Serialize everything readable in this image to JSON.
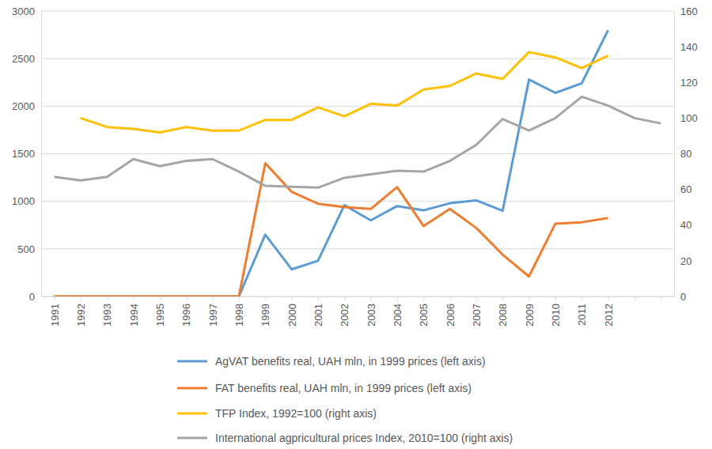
{
  "chart_data": {
    "type": "line",
    "categories": [
      "1991",
      "1992",
      "1993",
      "1994",
      "1995",
      "1996",
      "1997",
      "1998",
      "1999",
      "2000",
      "2001",
      "2002",
      "2003",
      "2004",
      "2005",
      "2006",
      "2007",
      "2008",
      "2009",
      "2010",
      "2011",
      "2012",
      null,
      null
    ],
    "series": [
      {
        "name": "AgVAT benefits real, UAH mln, in 1999 prices (left axis)",
        "color": "#5b9bd5",
        "values": [
          0,
          0,
          0,
          0,
          0,
          0,
          0,
          0,
          650,
          285,
          375,
          960,
          800,
          950,
          905,
          980,
          1010,
          900,
          2280,
          2140,
          2240,
          2800,
          null,
          null
        ]
      },
      {
        "name": "FAT benefits real, UAH mln,  in 1999 prices (left axis)",
        "color": "#ed7d31",
        "values": [
          0,
          0,
          0,
          0,
          0,
          0,
          0,
          0,
          1400,
          1100,
          975,
          940,
          920,
          1150,
          740,
          920,
          720,
          440,
          210,
          765,
          780,
          825,
          null,
          null
        ]
      },
      {
        "name": "TFP Index, 1992=100 (right axis)",
        "color": "#ffc000",
        "axis": "y2",
        "values": [
          null,
          100,
          95,
          94,
          92,
          95,
          93,
          93,
          99,
          99,
          106,
          101,
          108,
          107,
          116,
          118,
          125,
          122,
          137,
          134,
          128,
          135,
          null,
          null
        ]
      },
      {
        "name": "International agpricultural prices Index, 2010=100 (right axis)",
        "color": "#a5a5a5",
        "axis": "y2",
        "values": [
          67,
          65,
          67,
          77,
          73,
          76,
          77,
          70,
          62,
          61.5,
          61,
          66.5,
          68.5,
          70.5,
          70,
          76,
          85,
          99.5,
          93,
          100,
          112,
          107,
          100,
          97
        ]
      }
    ],
    "ylim": [
      0,
      3000
    ],
    "yticks": [
      0,
      500,
      1000,
      1500,
      2000,
      2500,
      3000
    ],
    "y2lim": [
      0,
      160
    ],
    "y2ticks": [
      0,
      20,
      40,
      60,
      80,
      100,
      120,
      140,
      160
    ],
    "grid": true,
    "legend": "bottom"
  }
}
